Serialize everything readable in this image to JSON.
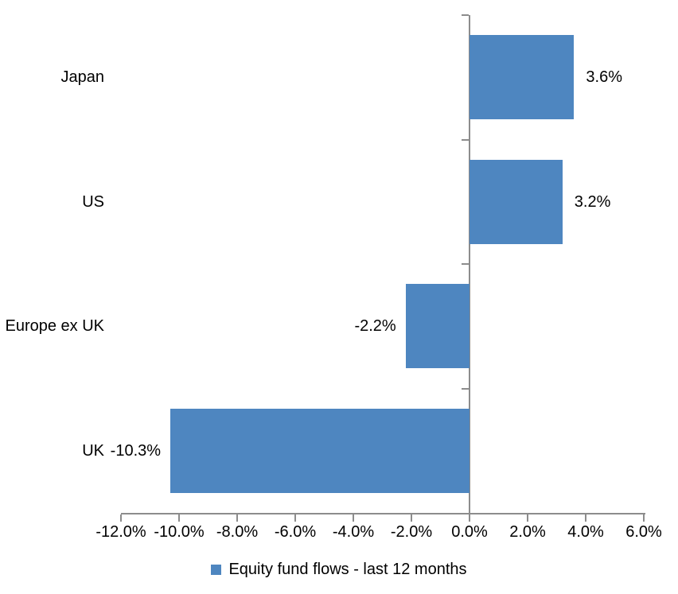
{
  "chart_data": {
    "type": "bar",
    "orientation": "horizontal",
    "title": "",
    "categories": [
      "Japan",
      "US",
      "Europe ex UK",
      "UK"
    ],
    "values": [
      3.6,
      3.2,
      -2.2,
      -10.3
    ],
    "data_labels": [
      "3.6%",
      "3.2%",
      "-2.2%",
      "-10.3%"
    ],
    "series_name": "Equity fund flows - last 12 months",
    "x_ticks": [
      -12,
      -10,
      -8,
      -6,
      -4,
      -2,
      0,
      2,
      4,
      6
    ],
    "x_tick_labels": [
      "-12.0%",
      "-10.0%",
      "-8.0%",
      "-6.0%",
      "-4.0%",
      "-2.0%",
      "0.0%",
      "2.0%",
      "4.0%",
      "6.0%"
    ],
    "xlim": [
      -12,
      6
    ],
    "xlabel": "",
    "ylabel": "",
    "grid": false,
    "legend_position": "bottom",
    "bar_color": "#4E86C0",
    "axis_color": "#8C8C8C",
    "text_color": "#000000",
    "background_color": "#FFFFFF"
  }
}
